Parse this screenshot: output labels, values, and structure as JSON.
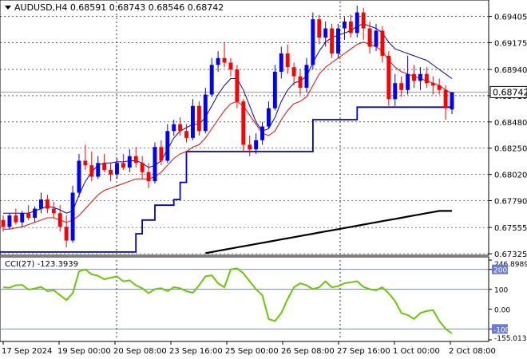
{
  "chart_data": [
    {
      "type": "candlestick",
      "title": "AUDUSD,H4  0.68591 0.68743 0.68546 0.68742",
      "symbol": "AUDUSD",
      "timeframe": "H4",
      "ohlc_header": [
        "0.68591",
        "0.68743",
        "0.68546",
        "0.68742"
      ],
      "current_price_label": "0.68742",
      "ylim": [
        0.67325,
        0.69535
      ],
      "y_ticks": [
        "0.69405",
        "0.69175",
        "0.68940",
        "0.68710",
        "0.68480",
        "0.68250",
        "0.68020",
        "0.67790",
        "0.67555",
        "0.67325"
      ],
      "x_ticks": [
        "17 Sep 2024",
        "19 Sep 00:00",
        "20 Sep 08:00",
        "23 Sep 16:00",
        "25 Sep 00:00",
        "26 Sep 08:00",
        "27 Sep 16:00",
        "1 Oct 00:00",
        "2 Oct 08:00"
      ],
      "colors": {
        "bull": "#0000ff",
        "bear": "#ff0000",
        "ma_fast": "#0000cc",
        "ma_slow": "#ff0000",
        "step_line": "#0000cc",
        "ma_long": "#000000"
      },
      "candles": [
        [
          0.6762,
          0.6766,
          0.6752,
          0.6756
        ],
        [
          0.6756,
          0.6768,
          0.6754,
          0.6766
        ],
        [
          0.6766,
          0.6772,
          0.6758,
          0.676
        ],
        [
          0.676,
          0.677,
          0.6756,
          0.6768
        ],
        [
          0.6768,
          0.6775,
          0.6762,
          0.6764
        ],
        [
          0.6764,
          0.6774,
          0.676,
          0.6772
        ],
        [
          0.6772,
          0.6786,
          0.6768,
          0.678
        ],
        [
          0.678,
          0.6784,
          0.6768,
          0.6772
        ],
        [
          0.6772,
          0.6778,
          0.6764,
          0.6768
        ],
        [
          0.6768,
          0.6775,
          0.6752,
          0.6756
        ],
        [
          0.6756,
          0.6766,
          0.6738,
          0.6744
        ],
        [
          0.6744,
          0.6792,
          0.6742,
          0.6786
        ],
        [
          0.6786,
          0.682,
          0.6782,
          0.6814
        ],
        [
          0.6814,
          0.6828,
          0.6806,
          0.681
        ],
        [
          0.681,
          0.6822,
          0.6796,
          0.68
        ],
        [
          0.68,
          0.6818,
          0.6798,
          0.6812
        ],
        [
          0.6812,
          0.682,
          0.6804,
          0.6806
        ],
        [
          0.6806,
          0.6812,
          0.6796,
          0.6802
        ],
        [
          0.6802,
          0.6816,
          0.6798,
          0.6812
        ],
        [
          0.6812,
          0.682,
          0.6806,
          0.6808
        ],
        [
          0.6808,
          0.6824,
          0.6804,
          0.6818
        ],
        [
          0.6818,
          0.6826,
          0.6808,
          0.6812
        ],
        [
          0.6812,
          0.6818,
          0.6798,
          0.6804
        ],
        [
          0.6804,
          0.6812,
          0.679,
          0.6796
        ],
        [
          0.6796,
          0.683,
          0.6794,
          0.6826
        ],
        [
          0.6826,
          0.6832,
          0.681,
          0.6814
        ],
        [
          0.6814,
          0.6846,
          0.6812,
          0.684
        ],
        [
          0.684,
          0.685,
          0.6836,
          0.6846
        ],
        [
          0.6846,
          0.6852,
          0.6836,
          0.684
        ],
        [
          0.684,
          0.6846,
          0.683,
          0.6834
        ],
        [
          0.6834,
          0.6868,
          0.6832,
          0.6862
        ],
        [
          0.6862,
          0.6866,
          0.6836,
          0.684
        ],
        [
          0.684,
          0.6878,
          0.6838,
          0.6872
        ],
        [
          0.6872,
          0.6904,
          0.687,
          0.6898
        ],
        [
          0.6898,
          0.691,
          0.6892,
          0.6904
        ],
        [
          0.6904,
          0.6918,
          0.6896,
          0.69
        ],
        [
          0.69,
          0.6904,
          0.6888,
          0.6894
        ],
        [
          0.6894,
          0.6898,
          0.686,
          0.6866
        ],
        [
          0.6866,
          0.6868,
          0.6822,
          0.6828
        ],
        [
          0.6828,
          0.6836,
          0.6818,
          0.6824
        ],
        [
          0.6824,
          0.6838,
          0.682,
          0.6832
        ],
        [
          0.6832,
          0.6848,
          0.6828,
          0.6844
        ],
        [
          0.6844,
          0.6866,
          0.6842,
          0.686
        ],
        [
          0.686,
          0.6898,
          0.6858,
          0.6892
        ],
        [
          0.6892,
          0.6914,
          0.6886,
          0.6908
        ],
        [
          0.6908,
          0.6916,
          0.689,
          0.6896
        ],
        [
          0.6896,
          0.69,
          0.688,
          0.6888
        ],
        [
          0.6888,
          0.6894,
          0.6872,
          0.6878
        ],
        [
          0.6878,
          0.6904,
          0.6874,
          0.6898
        ],
        [
          0.6898,
          0.6944,
          0.6894,
          0.6938
        ],
        [
          0.6938,
          0.6942,
          0.6916,
          0.6922
        ],
        [
          0.6922,
          0.6936,
          0.6914,
          0.693
        ],
        [
          0.693,
          0.6934,
          0.6904,
          0.6908
        ],
        [
          0.6908,
          0.6934,
          0.6904,
          0.693
        ],
        [
          0.693,
          0.694,
          0.692,
          0.6936
        ],
        [
          0.6936,
          0.6942,
          0.6922,
          0.6926
        ],
        [
          0.6926,
          0.695,
          0.6922,
          0.6944
        ],
        [
          0.6944,
          0.6948,
          0.692,
          0.693
        ],
        [
          0.693,
          0.6936,
          0.6908,
          0.6914
        ],
        [
          0.6914,
          0.6934,
          0.691,
          0.6928
        ],
        [
          0.6928,
          0.6932,
          0.69,
          0.6906
        ],
        [
          0.6906,
          0.691,
          0.6862,
          0.6868
        ],
        [
          0.6868,
          0.689,
          0.6862,
          0.6882
        ],
        [
          0.6882,
          0.6888,
          0.687,
          0.6876
        ],
        [
          0.6876,
          0.6906,
          0.6872,
          0.689
        ],
        [
          0.689,
          0.6898,
          0.6878,
          0.6884
        ],
        [
          0.6884,
          0.6896,
          0.6876,
          0.689
        ],
        [
          0.689,
          0.6896,
          0.6878,
          0.6882
        ],
        [
          0.6882,
          0.6888,
          0.6872,
          0.688
        ],
        [
          0.688,
          0.6886,
          0.6872,
          0.6876
        ],
        [
          0.6876,
          0.688,
          0.685,
          0.686
        ],
        [
          0.6859,
          0.6874,
          0.6855,
          0.6874
        ]
      ],
      "ma_fast": [
        0.6768,
        0.6768,
        0.6768,
        0.6768,
        0.6768,
        0.677,
        0.6772,
        0.6774,
        0.6773,
        0.6771,
        0.6768,
        0.677,
        0.6784,
        0.6796,
        0.6804,
        0.681,
        0.6812,
        0.6812,
        0.6813,
        0.6813,
        0.6814,
        0.6814,
        0.6812,
        0.6808,
        0.681,
        0.6814,
        0.6824,
        0.6834,
        0.684,
        0.6843,
        0.6846,
        0.6846,
        0.6852,
        0.6862,
        0.6872,
        0.688,
        0.6886,
        0.6886,
        0.6876,
        0.6862,
        0.6848,
        0.684,
        0.6842,
        0.6852,
        0.6866,
        0.6876,
        0.6882,
        0.6884,
        0.6888,
        0.69,
        0.691,
        0.6918,
        0.6922,
        0.6924,
        0.6926,
        0.6928,
        0.6932,
        0.6934,
        0.6932,
        0.693,
        0.6926,
        0.6918,
        0.6912,
        0.691,
        0.6908,
        0.6906,
        0.6904,
        0.6902,
        0.6898,
        0.6894,
        0.689,
        0.6886
      ],
      "ma_slow": [
        0.6754,
        0.6754,
        0.6755,
        0.6756,
        0.6758,
        0.676,
        0.6762,
        0.6764,
        0.6764,
        0.6762,
        0.676,
        0.6762,
        0.6766,
        0.6772,
        0.6778,
        0.6784,
        0.6788,
        0.679,
        0.6792,
        0.6794,
        0.6796,
        0.6798,
        0.6798,
        0.6798,
        0.68,
        0.6804,
        0.681,
        0.6816,
        0.682,
        0.6822,
        0.6826,
        0.6828,
        0.6834,
        0.6842,
        0.685,
        0.6858,
        0.6864,
        0.6866,
        0.6862,
        0.6854,
        0.6846,
        0.6838,
        0.6836,
        0.684,
        0.685,
        0.6858,
        0.6864,
        0.6866,
        0.687,
        0.688,
        0.689,
        0.6896,
        0.69,
        0.6904,
        0.6908,
        0.6912,
        0.6916,
        0.6918,
        0.6916,
        0.6914,
        0.691,
        0.6902,
        0.6896,
        0.6892,
        0.689,
        0.6888,
        0.6886,
        0.6884,
        0.6882,
        0.688,
        0.6876,
        0.6873
      ],
      "step_line": [
        0.6734,
        0.6734,
        0.6734,
        0.6734,
        0.6734,
        0.6734,
        0.6734,
        0.6734,
        0.6734,
        0.6734,
        0.6734,
        0.6734,
        0.6734,
        0.6734,
        0.6734,
        0.6734,
        0.6734,
        0.6734,
        0.6734,
        0.6734,
        0.6734,
        0.675,
        0.6762,
        0.6762,
        0.6775,
        0.6775,
        0.6775,
        0.678,
        0.6795,
        0.6822,
        0.6822,
        0.6822,
        0.6822,
        0.6822,
        0.6822,
        0.6822,
        0.6822,
        0.6822,
        0.6822,
        0.6822,
        0.6822,
        0.6822,
        0.6822,
        0.6822,
        0.6822,
        0.6822,
        0.6822,
        0.6822,
        0.6822,
        0.685,
        0.685,
        0.685,
        0.685,
        0.685,
        0.685,
        0.685,
        0.6861,
        0.6861,
        0.6861,
        0.6861,
        0.6861,
        0.6861,
        0.6861,
        0.6861,
        0.6861,
        0.6861,
        0.6861,
        0.6861,
        0.6861,
        0.6861,
        0.6861,
        0.6861
      ],
      "ma_long": [
        null,
        null,
        null,
        null,
        null,
        null,
        null,
        null,
        null,
        null,
        null,
        null,
        null,
        null,
        null,
        null,
        null,
        null,
        null,
        null,
        null,
        null,
        null,
        null,
        null,
        null,
        null,
        null,
        null,
        null,
        null,
        null,
        0.6733,
        0.6734,
        0.6735,
        0.6736,
        0.6737,
        0.6738,
        0.6739,
        0.674,
        0.6741,
        0.6742,
        0.6743,
        0.6744,
        0.6745,
        0.6746,
        0.6747,
        0.6748,
        0.6749,
        0.675,
        0.6751,
        0.6752,
        0.6753,
        0.6754,
        0.6755,
        0.6756,
        0.6757,
        0.6758,
        0.6759,
        0.676,
        0.6761,
        0.6762,
        0.6763,
        0.6764,
        0.6765,
        0.6766,
        0.6767,
        0.6768,
        0.6769,
        0.677,
        0.677,
        0.677
      ]
    },
    {
      "type": "line",
      "title": "CCI(27) -123.3939",
      "series": [
        {
          "name": "CCI(27)",
          "color": "#66cc00",
          "values": [
            110,
            108,
            120,
            122,
            98,
            104,
            112,
            90,
            95,
            70,
            45,
            80,
            190,
            200,
            175,
            168,
            150,
            158,
            165,
            140,
            145,
            120,
            105,
            80,
            100,
            105,
            90,
            110,
            105,
            90,
            82,
            120,
            165,
            170,
            130,
            110,
            200,
            205,
            180,
            140,
            100,
            70,
            -50,
            -60,
            -20,
            50,
            110,
            130,
            120,
            100,
            110,
            140,
            110,
            115,
            130,
            135,
            140,
            112,
            100,
            95,
            110,
            80,
            40,
            -20,
            -30,
            -50,
            -20,
            -10,
            -5,
            -60,
            -100,
            -123
          ]
        }
      ],
      "ylim": [
        -155.0136,
        246.8989
      ],
      "y_ticks": [
        "246.8989",
        "200",
        "100",
        "0.00",
        "-100",
        "-155.0136"
      ],
      "levels": [
        200,
        100,
        -100
      ]
    }
  ]
}
